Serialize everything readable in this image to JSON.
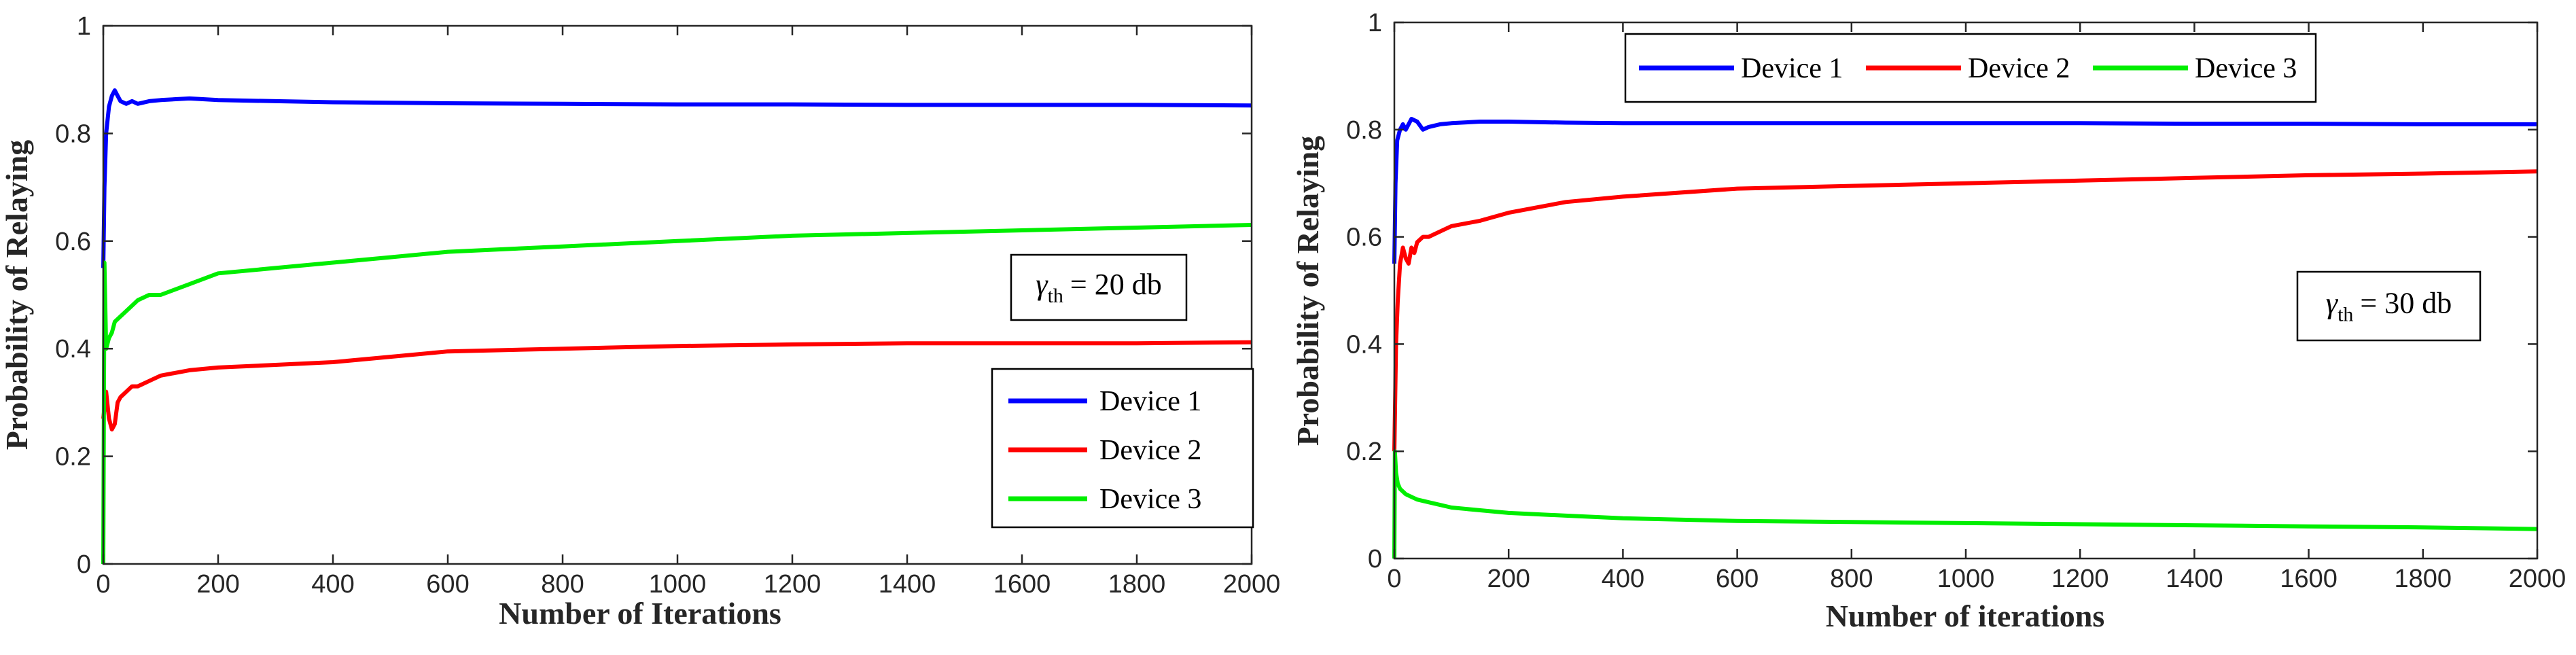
{
  "chart_data": [
    {
      "type": "line",
      "xlabel": "Number of Iterations",
      "ylabel": "Probability of Relaying",
      "xlim": [
        0,
        2000
      ],
      "ylim": [
        0,
        1
      ],
      "xticks": [
        "0",
        "200",
        "400",
        "600",
        "800",
        "1000",
        "1200",
        "1400",
        "1600",
        "1800",
        "2000"
      ],
      "yticks": [
        "0",
        "0.2",
        "0.4",
        "0.6",
        "0.8",
        "1"
      ],
      "annotation": {
        "symbol": "γ",
        "sub": "th",
        "text": "= 20 db"
      },
      "legend_position": "right",
      "series": [
        {
          "name": "Device 1",
          "color": "#0000ff",
          "x": [
            0,
            2,
            5,
            10,
            15,
            20,
            25,
            30,
            40,
            50,
            60,
            80,
            100,
            150,
            200,
            300,
            400,
            600,
            800,
            1000,
            1200,
            1400,
            1600,
            1800,
            2000
          ],
          "y": [
            0.55,
            0.7,
            0.8,
            0.85,
            0.87,
            0.88,
            0.87,
            0.86,
            0.855,
            0.86,
            0.855,
            0.86,
            0.862,
            0.865,
            0.862,
            0.86,
            0.858,
            0.856,
            0.855,
            0.854,
            0.854,
            0.853,
            0.853,
            0.853,
            0.852
          ]
        },
        {
          "name": "Device 2",
          "color": "#ff0000",
          "x": [
            0,
            5,
            10,
            15,
            20,
            25,
            30,
            40,
            50,
            60,
            80,
            100,
            150,
            200,
            300,
            400,
            500,
            600,
            800,
            1000,
            1200,
            1400,
            1600,
            1800,
            2000
          ],
          "y": [
            0.27,
            0.32,
            0.27,
            0.25,
            0.26,
            0.3,
            0.31,
            0.32,
            0.33,
            0.33,
            0.34,
            0.35,
            0.36,
            0.365,
            0.37,
            0.375,
            0.385,
            0.395,
            0.4,
            0.405,
            0.408,
            0.41,
            0.41,
            0.41,
            0.412
          ]
        },
        {
          "name": "Device 3",
          "color": "#00ee00",
          "x": [
            0,
            2,
            5,
            10,
            15,
            20,
            30,
            40,
            60,
            80,
            100,
            150,
            200,
            300,
            400,
            500,
            600,
            800,
            1000,
            1200,
            1400,
            1600,
            1800,
            2000
          ],
          "y": [
            0.0,
            0.56,
            0.4,
            0.42,
            0.43,
            0.45,
            0.46,
            0.47,
            0.49,
            0.5,
            0.5,
            0.52,
            0.54,
            0.55,
            0.56,
            0.57,
            0.58,
            0.59,
            0.6,
            0.61,
            0.615,
            0.62,
            0.625,
            0.63
          ]
        }
      ]
    },
    {
      "type": "line",
      "xlabel": "Number of iterations",
      "ylabel": "Probability of Relaying",
      "xlim": [
        0,
        2000
      ],
      "ylim": [
        0,
        1
      ],
      "xticks": [
        "0",
        "200",
        "400",
        "600",
        "800",
        "1000",
        "1200",
        "1400",
        "1600",
        "1800",
        "2000"
      ],
      "yticks": [
        "0",
        "0.2",
        "0.4",
        "0.6",
        "0.8",
        "1"
      ],
      "annotation": {
        "symbol": "γ",
        "sub": "th",
        "text": "= 30 db"
      },
      "legend_position": "top",
      "series": [
        {
          "name": "Device 1",
          "color": "#0000ff",
          "x": [
            0,
            2,
            5,
            10,
            15,
            20,
            30,
            40,
            50,
            60,
            80,
            100,
            150,
            200,
            300,
            400,
            600,
            800,
            1000,
            1200,
            1400,
            1600,
            1800,
            2000
          ],
          "y": [
            0.55,
            0.7,
            0.78,
            0.8,
            0.81,
            0.8,
            0.82,
            0.815,
            0.8,
            0.805,
            0.81,
            0.812,
            0.815,
            0.815,
            0.813,
            0.812,
            0.812,
            0.812,
            0.812,
            0.812,
            0.811,
            0.811,
            0.81,
            0.81
          ]
        },
        {
          "name": "Device 2",
          "color": "#ff0000",
          "x": [
            0,
            3,
            6,
            10,
            15,
            20,
            25,
            30,
            35,
            40,
            50,
            60,
            80,
            100,
            150,
            200,
            300,
            400,
            600,
            800,
            1000,
            1200,
            1400,
            1600,
            1800,
            2000
          ],
          "y": [
            0.2,
            0.4,
            0.48,
            0.55,
            0.58,
            0.56,
            0.55,
            0.58,
            0.57,
            0.59,
            0.6,
            0.6,
            0.61,
            0.62,
            0.63,
            0.645,
            0.665,
            0.675,
            0.69,
            0.695,
            0.7,
            0.705,
            0.71,
            0.715,
            0.718,
            0.722
          ]
        },
        {
          "name": "Device 3",
          "color": "#00ee00",
          "x": [
            0,
            1,
            3,
            6,
            10,
            20,
            30,
            40,
            60,
            80,
            100,
            150,
            200,
            300,
            400,
            600,
            800,
            1000,
            1200,
            1400,
            1600,
            1800,
            2000
          ],
          "y": [
            0.0,
            0.2,
            0.16,
            0.14,
            0.13,
            0.12,
            0.115,
            0.11,
            0.105,
            0.1,
            0.095,
            0.09,
            0.085,
            0.08,
            0.075,
            0.07,
            0.068,
            0.066,
            0.064,
            0.062,
            0.06,
            0.058,
            0.055
          ]
        }
      ]
    }
  ]
}
